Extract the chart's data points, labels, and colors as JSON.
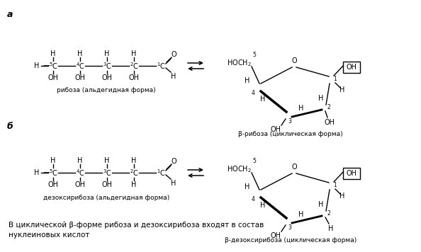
{
  "bg_color": "#ffffff",
  "fig_width": 5.94,
  "fig_height": 3.56,
  "title_a": "а",
  "title_b": "б",
  "label_ribose_linear": "рибоза (альдегидная форма)",
  "label_ribose_cyclic": "β-рибоза (циклическая форма)",
  "label_deoxy_linear": "дезоксирибоза (альдегидная форма)",
  "label_deoxy_cyclic": "β-дезоксирибоза (циклическая форма)",
  "footer_line1": "В циклической β-форме рибоза и дезоксирибоза входят в состав",
  "footer_line2": "нуклеиновых кислот"
}
